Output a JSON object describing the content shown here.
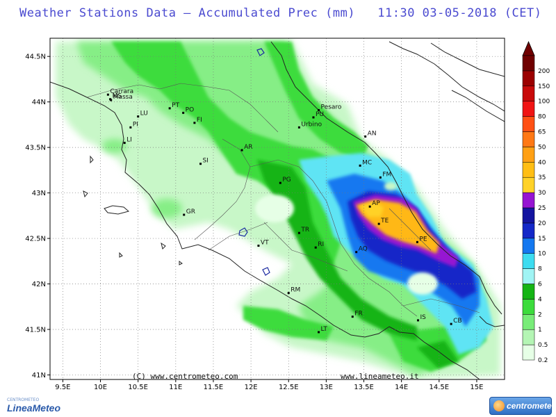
{
  "header": {
    "title": "Weather Stations Data — Accumulated Prec (mm)   11:30 03-05-2018 (CET)"
  },
  "map": {
    "lon_min": 9.33,
    "lon_max": 15.37,
    "lat_min": 40.95,
    "lat_max": 44.7,
    "x_ticks": [
      "9.5E",
      "10E",
      "10.5E",
      "11E",
      "11.5E",
      "12E",
      "12.5E",
      "13E",
      "13.5E",
      "14E",
      "14.5E",
      "15E"
    ],
    "y_ticks": [
      "41N",
      "41.5N",
      "42N",
      "42.5N",
      "43N",
      "43.5N",
      "44N",
      "44.5N"
    ],
    "grid": true,
    "credits": [
      "(C) www.centrometeo.com",
      "www.lineameteo.it"
    ],
    "cities": [
      {
        "name": "MS",
        "lon": 10.13,
        "lat": 44.03
      },
      {
        "name": "Carrara",
        "lon": 10.1,
        "lat": 44.08
      },
      {
        "name": "Massa",
        "lon": 10.14,
        "lat": 44.02
      },
      {
        "name": "LU",
        "lon": 10.5,
        "lat": 43.84
      },
      {
        "name": "PT",
        "lon": 10.92,
        "lat": 43.93
      },
      {
        "name": "PO",
        "lon": 11.1,
        "lat": 43.88
      },
      {
        "name": "FI",
        "lon": 11.25,
        "lat": 43.77
      },
      {
        "name": "PI",
        "lon": 10.4,
        "lat": 43.72
      },
      {
        "name": "LI",
        "lon": 10.32,
        "lat": 43.55
      },
      {
        "name": "SI",
        "lon": 11.33,
        "lat": 43.32
      },
      {
        "name": "AR",
        "lon": 11.88,
        "lat": 43.47
      },
      {
        "name": "GR",
        "lon": 11.11,
        "lat": 42.76
      },
      {
        "name": "Pesaro",
        "lon": 12.9,
        "lat": 43.91
      },
      {
        "name": "PU",
        "lon": 12.83,
        "lat": 43.83
      },
      {
        "name": "Urbino",
        "lon": 12.64,
        "lat": 43.72
      },
      {
        "name": "AN",
        "lon": 13.52,
        "lat": 43.62
      },
      {
        "name": "PG",
        "lon": 12.39,
        "lat": 43.11
      },
      {
        "name": "MC",
        "lon": 13.45,
        "lat": 43.3
      },
      {
        "name": "FM",
        "lon": 13.72,
        "lat": 43.17
      },
      {
        "name": "AP",
        "lon": 13.58,
        "lat": 42.85
      },
      {
        "name": "TE",
        "lon": 13.7,
        "lat": 42.66
      },
      {
        "name": "PE",
        "lon": 14.21,
        "lat": 42.46
      },
      {
        "name": "TR",
        "lon": 12.64,
        "lat": 42.56
      },
      {
        "name": "RI",
        "lon": 12.86,
        "lat": 42.4
      },
      {
        "name": "AQ",
        "lon": 13.4,
        "lat": 42.35
      },
      {
        "name": "VT",
        "lon": 12.1,
        "lat": 42.42
      },
      {
        "name": "RM",
        "lon": 12.5,
        "lat": 41.9
      },
      {
        "name": "FR",
        "lon": 13.35,
        "lat": 41.64
      },
      {
        "name": "LT",
        "lon": 12.9,
        "lat": 41.47
      },
      {
        "name": "IS",
        "lon": 14.22,
        "lat": 41.6
      },
      {
        "name": "CB",
        "lon": 14.66,
        "lat": 41.56
      }
    ]
  },
  "legend": {
    "unit": "mm",
    "levels": [
      "0.2",
      "0.5",
      "1",
      "2",
      "4",
      "6",
      "8",
      "10",
      "15",
      "20",
      "25",
      "30",
      "35",
      "40",
      "50",
      "65",
      "80",
      "100",
      "150",
      "200"
    ],
    "colors": [
      "#e6ffe6",
      "#b4f5b4",
      "#78ec78",
      "#3cdc3c",
      "#14b414",
      "#a0f4f4",
      "#3cdcf0",
      "#1478f0",
      "#1428c8",
      "#1414a0",
      "#9614d2",
      "#ffd228",
      "#ffbe14",
      "#ffa014",
      "#ff7814",
      "#ff5014",
      "#f01414",
      "#c80a0a",
      "#9b0000",
      "#700000"
    ]
  }
}
